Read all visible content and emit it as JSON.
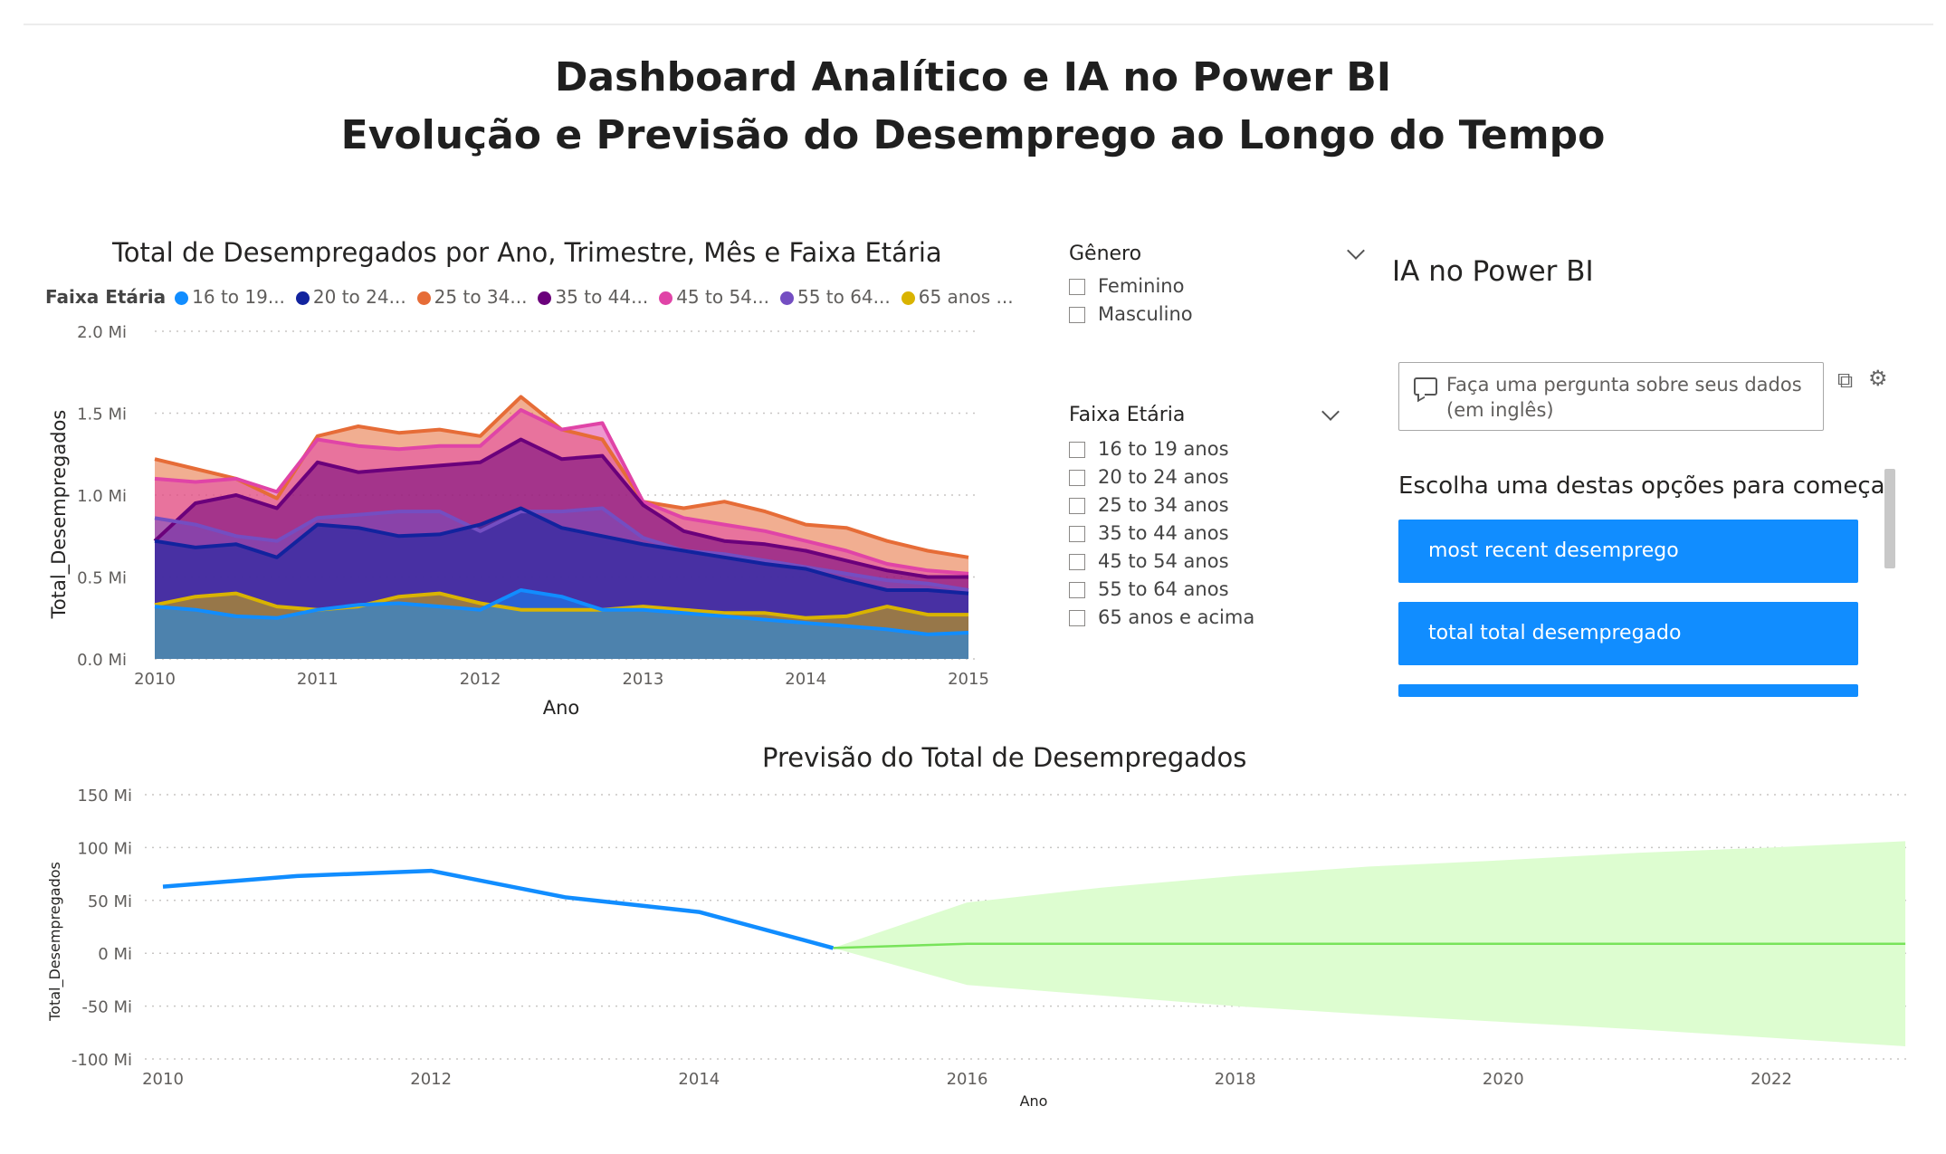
{
  "header": {
    "title_line1": "Dashboard Analítico e IA no Power BI",
    "title_line2": "Evolução e Previsão do Desemprego ao Longo do Tempo"
  },
  "area_chart": {
    "title": "Total de Desempregados por Ano, Trimestre, Mês e Faixa Etária",
    "legend_title": "Faixa Etária",
    "legend_items": [
      {
        "label": "16 to 19...",
        "color": "#118dff"
      },
      {
        "label": "20 to 24...",
        "color": "#12239e"
      },
      {
        "label": "25 to 34...",
        "color": "#e66c37"
      },
      {
        "label": "35 to 44...",
        "color": "#6b007b"
      },
      {
        "label": "45 to 54...",
        "color": "#e044a7"
      },
      {
        "label": "55 to 64...",
        "color": "#744ec2"
      },
      {
        "label": "65 anos ...",
        "color": "#d9b300"
      }
    ],
    "y_axis_title": "Total_Desempregados",
    "x_axis_title": "Ano",
    "y_ticks": [
      "2.0 Mi",
      "1.5 Mi",
      "1.0 Mi",
      "0.5 Mi",
      "0.0 Mi"
    ],
    "x_ticks": [
      "2010",
      "2011",
      "2012",
      "2013",
      "2014",
      "2015"
    ]
  },
  "chart_data": [
    {
      "type": "area",
      "title": "Total de Desempregados por Ano, Trimestre, Mês e Faixa Etária",
      "xlabel": "Ano",
      "ylabel": "Total_Desempregados",
      "ylim": [
        0,
        2.0
      ],
      "y_unit": "Mi",
      "x_range": [
        2010,
        2015
      ],
      "grid": true,
      "legend_placement": "top-left",
      "x": [
        2010.0,
        2010.25,
        2010.5,
        2010.75,
        2011.0,
        2011.25,
        2011.5,
        2011.75,
        2012.0,
        2012.25,
        2012.5,
        2012.75,
        2013.0,
        2013.25,
        2013.5,
        2013.75,
        2014.0,
        2014.25,
        2014.5,
        2014.75,
        2015.0
      ],
      "series": [
        {
          "name": "16 to 19...",
          "color": "#118dff",
          "values": [
            0.32,
            0.3,
            0.26,
            0.25,
            0.3,
            0.33,
            0.34,
            0.32,
            0.3,
            0.42,
            0.38,
            0.3,
            0.3,
            0.28,
            0.26,
            0.24,
            0.22,
            0.2,
            0.18,
            0.15,
            0.16
          ]
        },
        {
          "name": "20 to 24...",
          "color": "#12239e",
          "values": [
            0.72,
            0.68,
            0.7,
            0.62,
            0.82,
            0.8,
            0.75,
            0.76,
            0.82,
            0.92,
            0.8,
            0.75,
            0.7,
            0.66,
            0.62,
            0.58,
            0.55,
            0.48,
            0.42,
            0.42,
            0.4
          ]
        },
        {
          "name": "25 to 34...",
          "color": "#e66c37",
          "values": [
            1.22,
            1.16,
            1.1,
            0.98,
            1.36,
            1.42,
            1.38,
            1.4,
            1.36,
            1.6,
            1.4,
            1.34,
            0.96,
            0.92,
            0.96,
            0.9,
            0.82,
            0.8,
            0.72,
            0.66,
            0.62
          ]
        },
        {
          "name": "35 to 44...",
          "color": "#6b007b",
          "values": [
            0.72,
            0.95,
            1.0,
            0.92,
            1.2,
            1.14,
            1.16,
            1.18,
            1.2,
            1.34,
            1.22,
            1.24,
            0.94,
            0.78,
            0.72,
            0.7,
            0.66,
            0.6,
            0.54,
            0.5,
            0.5
          ]
        },
        {
          "name": "45 to 54...",
          "color": "#e044a7",
          "values": [
            1.1,
            1.08,
            1.1,
            1.02,
            1.34,
            1.3,
            1.28,
            1.3,
            1.3,
            1.52,
            1.4,
            1.44,
            0.96,
            0.86,
            0.82,
            0.78,
            0.72,
            0.66,
            0.58,
            0.54,
            0.52
          ]
        },
        {
          "name": "55 to 64...",
          "color": "#744ec2",
          "values": [
            0.86,
            0.82,
            0.75,
            0.72,
            0.86,
            0.88,
            0.9,
            0.9,
            0.78,
            0.9,
            0.9,
            0.92,
            0.74,
            0.66,
            0.64,
            0.6,
            0.56,
            0.52,
            0.48,
            0.46,
            0.42
          ]
        },
        {
          "name": "65 anos ...",
          "color": "#d9b300",
          "values": [
            0.33,
            0.38,
            0.4,
            0.32,
            0.3,
            0.32,
            0.38,
            0.4,
            0.34,
            0.3,
            0.3,
            0.3,
            0.32,
            0.3,
            0.28,
            0.28,
            0.25,
            0.26,
            0.32,
            0.27,
            0.27
          ]
        }
      ]
    },
    {
      "type": "line",
      "title": "Previsão do Total de Desempregados",
      "xlabel": "Ano",
      "ylabel": "Total_Desempregados",
      "ylim": [
        -100,
        150
      ],
      "y_unit": "Mi",
      "x_range": [
        2010,
        2023
      ],
      "grid": true,
      "series": [
        {
          "kind": "actual",
          "color": "#118dff",
          "x": [
            2010,
            2011,
            2012,
            2013,
            2014,
            2015
          ],
          "values": [
            63,
            73,
            78,
            53,
            39,
            5
          ]
        },
        {
          "kind": "forecast",
          "color": "#78e35a",
          "x": [
            2015,
            2016,
            2017,
            2018,
            2019,
            2020,
            2021,
            2022,
            2023
          ],
          "values": [
            5,
            9,
            9,
            9,
            9,
            9,
            9,
            9,
            9
          ]
        },
        {
          "kind": "forecast_upper",
          "color": "#ddfdd0",
          "x": [
            2015,
            2016,
            2017,
            2018,
            2019,
            2020,
            2021,
            2022,
            2023
          ],
          "values": [
            5,
            48,
            62,
            73,
            82,
            88,
            95,
            100,
            106
          ]
        },
        {
          "kind": "forecast_lower",
          "color": "#ddfdd0",
          "x": [
            2015,
            2016,
            2017,
            2018,
            2019,
            2020,
            2021,
            2022,
            2023
          ],
          "values": [
            5,
            -30,
            -40,
            -50,
            -58,
            -65,
            -72,
            -80,
            -88
          ]
        }
      ]
    }
  ],
  "forecast_chart": {
    "title": "Previsão do Total de Desempregados",
    "y_axis_title": "Total_Desempregados",
    "x_axis_title": "Ano",
    "y_ticks": [
      "150 Mi",
      "100 Mi",
      "50 Mi",
      "0 Mi",
      "-50 Mi",
      "-100 Mi"
    ],
    "x_ticks": [
      "2010",
      "2012",
      "2014",
      "2016",
      "2018",
      "2020",
      "2022"
    ]
  },
  "slicers": {
    "genero": {
      "title": "Gênero",
      "items": [
        "Feminino",
        "Masculino"
      ]
    },
    "faixa": {
      "title": "Faixa Etária",
      "items": [
        "16 to 19 anos",
        "20 to 24 anos",
        "25 to 34 anos",
        "35 to 44 anos",
        "45 to 54 anos",
        "55 to 64 anos",
        "65 anos e acima"
      ]
    }
  },
  "qa": {
    "title": "IA no Power BI",
    "input_placeholder": "Faça uma pergunta sobre seus dados (em inglês)",
    "choose_label": "Escolha uma destas opções para começar",
    "suggestions": [
      "most recent desemprego",
      "total total desempregado"
    ]
  },
  "icons": {
    "chat": "chat-bubble-icon",
    "convert": "convert-visual-icon",
    "settings": "gear-icon",
    "chevron": "chevron-down-icon",
    "checkbox": "checkbox-icon"
  }
}
